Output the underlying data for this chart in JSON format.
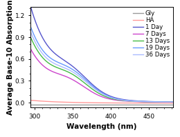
{
  "title": "",
  "xlabel": "Wavelength (nm)",
  "ylabel": "Average Base-10 Absorption",
  "xlim": [
    295,
    482
  ],
  "ylim": [
    -0.07,
    1.32
  ],
  "xticks": [
    300,
    350,
    400,
    450
  ],
  "yticks": [
    0.0,
    0.3,
    0.6,
    0.9,
    1.2
  ],
  "series": [
    {
      "label": "Gly",
      "color": "#999999",
      "lw": 1.0
    },
    {
      "label": "HA",
      "color": "#ff9999",
      "lw": 1.0
    },
    {
      "label": "1 Day",
      "color": "#5555cc",
      "lw": 1.0
    },
    {
      "label": "7 Days",
      "color": "#cc44cc",
      "lw": 1.0
    },
    {
      "label": "13 Days",
      "color": "#44bb44",
      "lw": 1.0
    },
    {
      "label": "19 Days",
      "color": "#6699ff",
      "lw": 1.0
    },
    {
      "label": "36 Days",
      "color": "#aabbff",
      "lw": 1.0
    }
  ],
  "legend_fontsize": 6.2,
  "axis_fontsize": 7.5,
  "tick_fontsize": 6.5
}
